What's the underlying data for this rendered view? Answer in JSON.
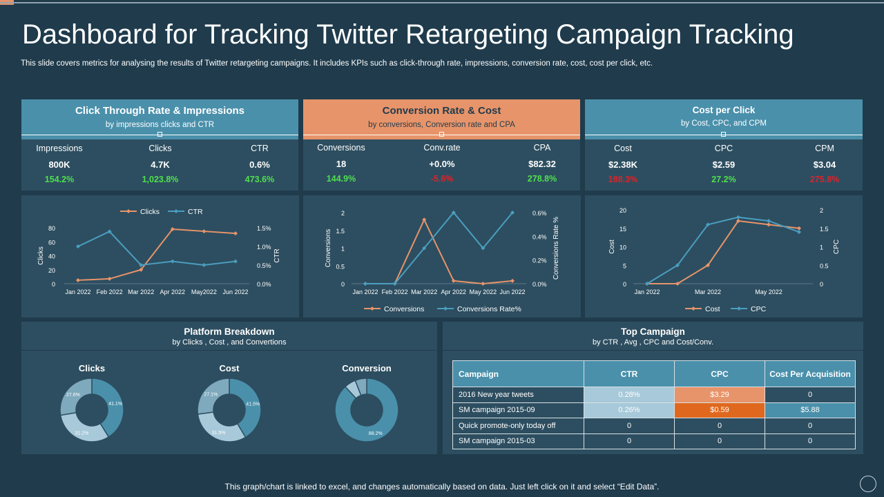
{
  "page": {
    "title": "Dashboard for Tracking Twitter Retargeting Campaign Tracking",
    "subtitle": "This slide covers metrics for analysing the results of Twitter retargeting campaigns. It includes KPIs such as click-through rate, impressions, conversion rate, cost, cost per click, etc.",
    "footer": "This graph/chart is linked to excel,  and changes automatically based on data. Just left click on it and select “Edit Data”."
  },
  "colors": {
    "background": "#1f3b4c",
    "card": "#2d4e60",
    "blue": "#4a90ab",
    "orange": "#e8946a",
    "green": "#4ee04e",
    "red": "#d9252b"
  },
  "kpi_cards": [
    {
      "title": "Click  Through Rate & Impressions",
      "sub": "by impressions clicks and CTR",
      "metrics": [
        {
          "label": "Impressions",
          "value": "800K",
          "change": "154.2%",
          "trend": "pos"
        },
        {
          "label": "Clicks",
          "value": "4.7K",
          "change": "1,023.8%",
          "trend": "pos"
        },
        {
          "label": "CTR",
          "value": "0.6%",
          "change": "473.6%",
          "trend": "pos"
        }
      ]
    },
    {
      "title": "Conversion Rate & Cost",
      "sub": "by conversions, Conversion rate and CPA",
      "metrics": [
        {
          "label": "Conversions",
          "value": "18",
          "change": "144.9%",
          "trend": "pos"
        },
        {
          "label": "Conv.rate",
          "value": "+0.0%",
          "change": "-5.6%",
          "trend": "neg"
        },
        {
          "label": "CPA",
          "value": "$82.32",
          "change": "278.8%",
          "trend": "pos"
        }
      ]
    },
    {
      "title": "Cost  per Click",
      "sub": "by Cost, CPC, and CPM",
      "metrics": [
        {
          "label": "Cost",
          "value": "$2.38K",
          "change": "188.3%",
          "trend": "neg"
        },
        {
          "label": "CPC",
          "value": "$2.59",
          "change": "27.2%",
          "trend": "pos"
        },
        {
          "label": "CPM",
          "value": "$3.04",
          "change": "275.8%",
          "trend": "neg"
        }
      ]
    }
  ],
  "chart_data": [
    {
      "type": "line",
      "title": "",
      "categories": [
        "Jan 2022",
        "Feb 2022",
        "Mar 2022",
        "Apr 2022",
        "May2022",
        "Jun 2022"
      ],
      "series": [
        {
          "name": "Clicks",
          "axis": "left",
          "color": "#e8946a",
          "values": [
            5,
            7,
            20,
            78,
            75,
            72
          ]
        },
        {
          "name": "CTR",
          "axis": "right",
          "color": "#4a9ec0",
          "values": [
            1.0,
            1.4,
            0.5,
            0.6,
            0.5,
            0.6
          ]
        }
      ],
      "ylabel": "Clicks",
      "y2label": "CTR",
      "ylim": [
        0,
        80
      ],
      "yticks": [
        "0",
        "20",
        "40",
        "60",
        "80"
      ],
      "y2lim": [
        0,
        1.5
      ],
      "y2ticks": [
        "0.0%",
        "0.5%",
        "1.0%",
        "1.5%"
      ]
    },
    {
      "type": "line",
      "title": "",
      "categories": [
        "Jan 2022",
        "Feb 2022",
        "Mar 2022",
        "Apr 2022",
        "May 2022",
        "Jun 2022"
      ],
      "series": [
        {
          "name": "Conversions",
          "axis": "left",
          "color": "#e8946a",
          "values": [
            0,
            0,
            1.8,
            0.08,
            0,
            0.08
          ]
        },
        {
          "name": "Conversions Rate%",
          "axis": "right",
          "color": "#4a9ec0",
          "values": [
            0,
            0,
            0.3,
            0.6,
            0.3,
            0.6
          ]
        }
      ],
      "ylabel": "Conversions",
      "y2label": "Conversions Rate %",
      "ylim": [
        0,
        2
      ],
      "yticks": [
        "0",
        "0.5",
        "1",
        "1.5",
        "2"
      ],
      "y2lim": [
        0,
        0.6
      ],
      "y2ticks": [
        "0.0%",
        "0.2%",
        "0.4%",
        "0.6%"
      ]
    },
    {
      "type": "line",
      "title": "",
      "categories": [
        "Jan 2022",
        "",
        "Mar 2022",
        "",
        "May 2022",
        ""
      ],
      "series": [
        {
          "name": "Cost",
          "axis": "left",
          "color": "#e8946a",
          "values": [
            0,
            0,
            5,
            17,
            16,
            15
          ]
        },
        {
          "name": "CPC",
          "axis": "right",
          "color": "#4a9ec0",
          "values": [
            0,
            0.5,
            1.6,
            1.8,
            1.7,
            1.4
          ]
        }
      ],
      "ylabel": "Cost",
      "y2label": "CPC",
      "ylim": [
        0,
        20
      ],
      "yticks": [
        "0",
        "5",
        "10",
        "15",
        "20"
      ],
      "y2lim": [
        0,
        2
      ],
      "y2ticks": [
        "0",
        "0.5",
        "1",
        "1.5",
        "2"
      ]
    },
    {
      "type": "pie",
      "title": "Clicks",
      "values": [
        41.1,
        31.2,
        27.6
      ],
      "labels": [
        "41.1%",
        "31.2%",
        "27.6%"
      ],
      "colors": [
        "#4a90ab",
        "#a7c9d9",
        "#7fa9bd"
      ]
    },
    {
      "type": "pie",
      "title": "Cost",
      "values": [
        41.5,
        31.5,
        27.1
      ],
      "labels": [
        "41.5%",
        "31.5%",
        "27.1%"
      ],
      "colors": [
        "#4a90ab",
        "#a7c9d9",
        "#7fa9bd"
      ]
    },
    {
      "type": "pie",
      "title": "Conversion",
      "values": [
        88.2,
        5.9,
        5.9
      ],
      "labels": [
        "88.2%",
        "",
        ""
      ],
      "colors": [
        "#4a90ab",
        "#a7c9d9",
        "#7fa9bd"
      ]
    }
  ],
  "platform": {
    "title": "Platform Breakdown",
    "sub": "by Clicks , Cost , and Convertions"
  },
  "top_campaign": {
    "title": "Top Campaign",
    "sub": "by  CTR  , Avg , CPC  and Cost/Conv.",
    "columns": [
      "Campaign",
      "CTR",
      "CPC",
      "Cost Per Acquisition"
    ],
    "rows": [
      {
        "name": "2016 New year tweets",
        "ctr": "0.28%",
        "cpc": "$3.29",
        "cpa": "0",
        "ctr_bg": "#a7c9d9",
        "cpc_bg": "#e8946a",
        "cpa_bg": ""
      },
      {
        "name": "SM campaign 2015-09",
        "ctr": "0.26%",
        "cpc": "$0.59",
        "cpa": "$5.88",
        "ctr_bg": "#a7c9d9",
        "cpc_bg": "#e0681e",
        "cpa_bg": "#4a90ab"
      },
      {
        "name": "Quick promote-only today off",
        "ctr": "0",
        "cpc": "0",
        "cpa": "0",
        "ctr_bg": "",
        "cpc_bg": "",
        "cpa_bg": ""
      },
      {
        "name": "SM campaign 2015-03",
        "ctr": "0",
        "cpc": "0",
        "cpa": "0",
        "ctr_bg": "",
        "cpc_bg": "",
        "cpa_bg": ""
      }
    ]
  }
}
